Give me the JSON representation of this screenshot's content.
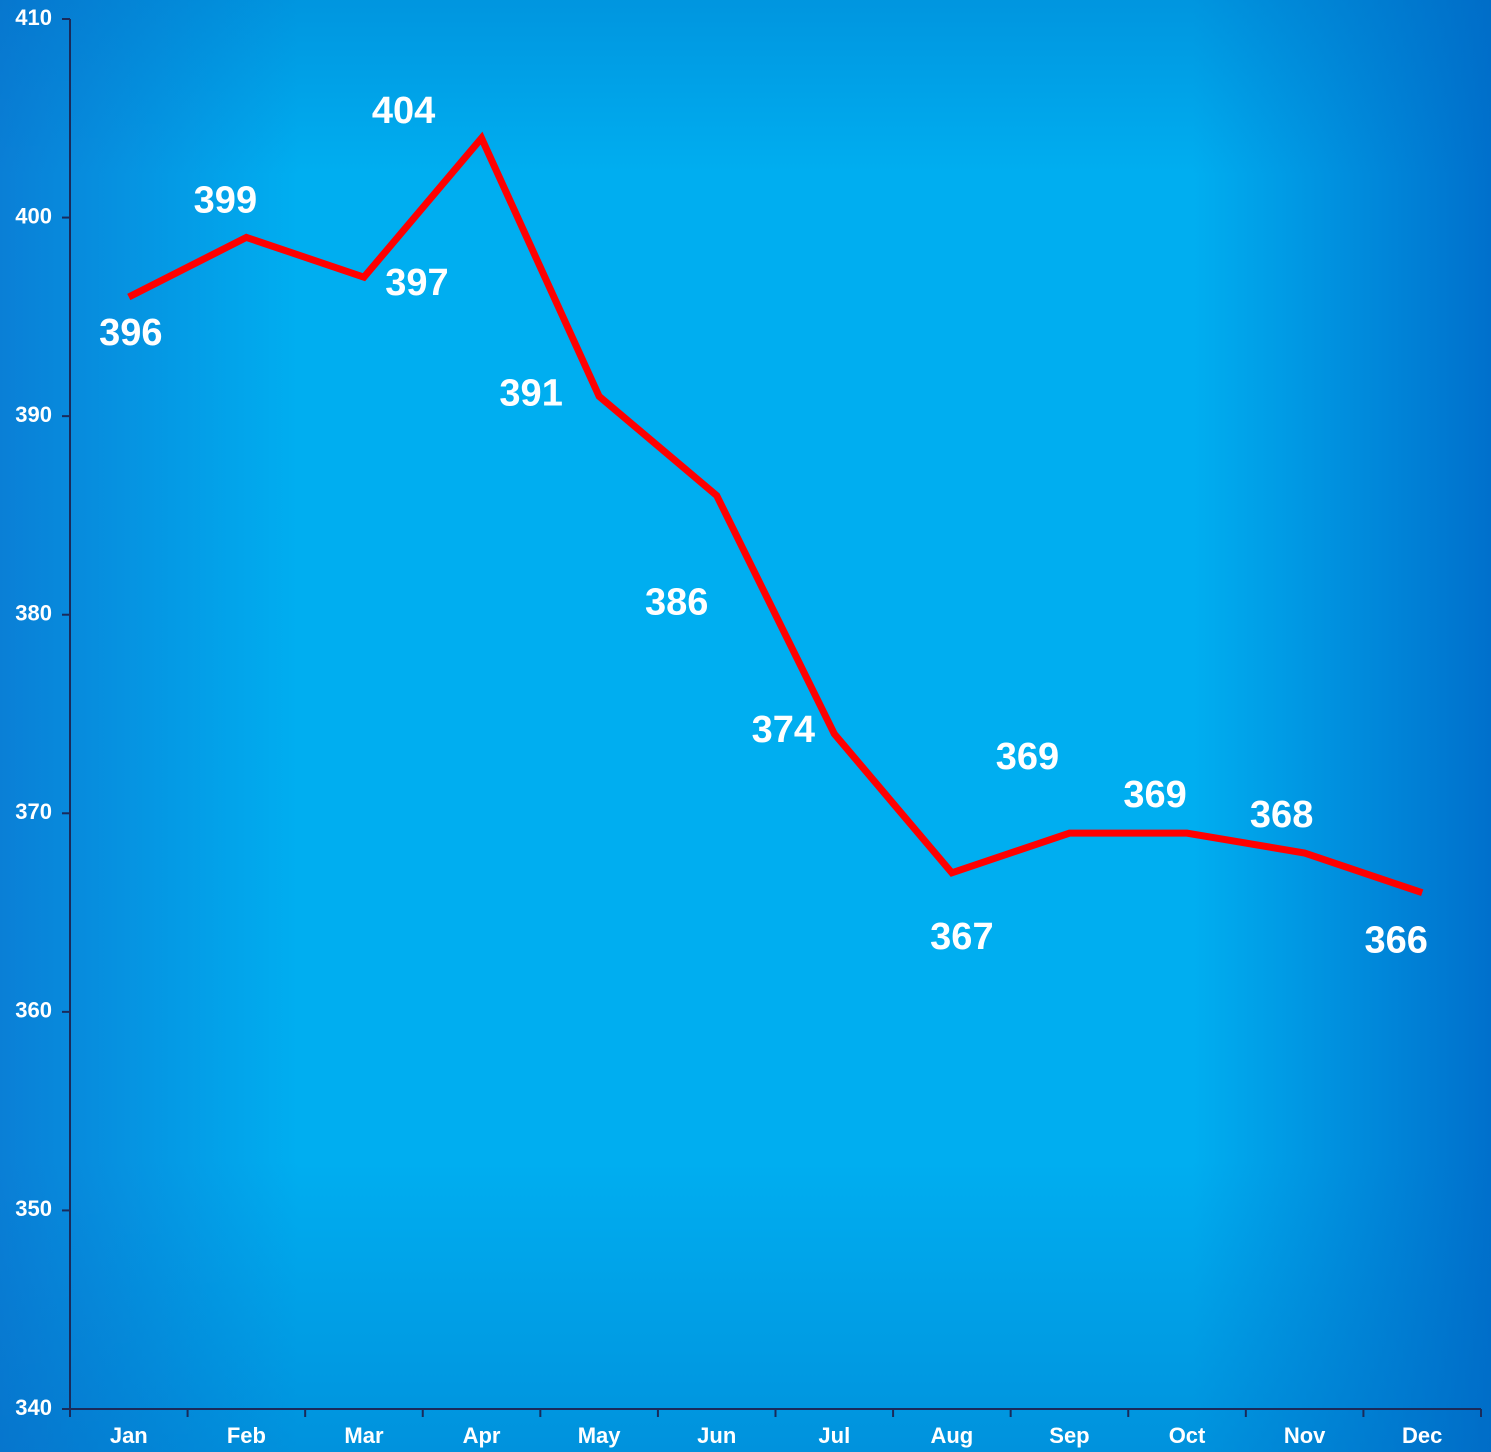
{
  "chart_data": {
    "type": "line",
    "categories": [
      "Jan",
      "Feb",
      "Mar",
      "Apr",
      "May",
      "Jun",
      "Jul",
      "Aug",
      "Sep",
      "Oct",
      "Nov",
      "Dec"
    ],
    "series": [
      {
        "color": "#ff0000",
        "values": [
          396,
          399,
          397,
          404,
          391,
          386,
          374,
          367,
          369,
          369,
          368,
          366
        ]
      }
    ],
    "ylim": [
      340,
      410
    ],
    "yticks": [
      340,
      350,
      360,
      370,
      380,
      390,
      400,
      410
    ],
    "grid": false
  }
}
